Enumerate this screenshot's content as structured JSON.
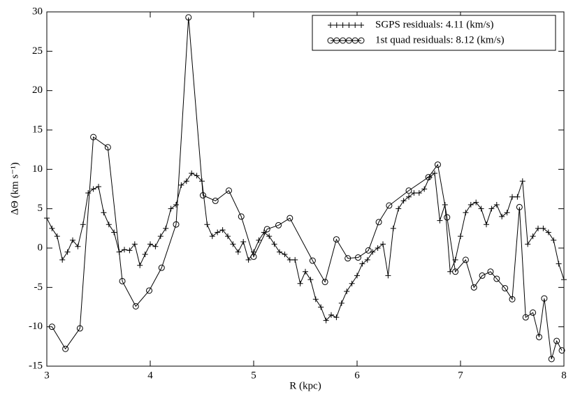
{
  "chart_data": {
    "type": "line",
    "xlabel": "R (kpc)",
    "ylabel": "ΔΘ (km s⁻¹)",
    "xlim": [
      3,
      8
    ],
    "xticks": [
      3,
      4,
      5,
      6,
      7,
      8
    ],
    "ylim": [
      -15,
      30
    ],
    "yticks": [
      -15,
      -10,
      -5,
      0,
      5,
      10,
      15,
      20,
      25,
      30
    ],
    "legend": "upper right",
    "series": [
      {
        "name": "SGPS residuals: 4.11 (km/s)",
        "color": "#000000",
        "marker": "+",
        "x": [
          3.0,
          3.05,
          3.1,
          3.15,
          3.2,
          3.25,
          3.3,
          3.35,
          3.4,
          3.45,
          3.5,
          3.55,
          3.6,
          3.65,
          3.7,
          3.75,
          3.8,
          3.85,
          3.9,
          3.95,
          4.0,
          4.05,
          4.1,
          4.15,
          4.2,
          4.25,
          4.3,
          4.35,
          4.4,
          4.45,
          4.5,
          4.55,
          4.6,
          4.65,
          4.7,
          4.75,
          4.8,
          4.85,
          4.9,
          4.95,
          5.0,
          5.05,
          5.1,
          5.15,
          5.2,
          5.25,
          5.3,
          5.35,
          5.4,
          5.45,
          5.5,
          5.55,
          5.6,
          5.65,
          5.7,
          5.75,
          5.8,
          5.85,
          5.9,
          5.95,
          6.0,
          6.05,
          6.1,
          6.15,
          6.2,
          6.25,
          6.3,
          6.35,
          6.4,
          6.45,
          6.5,
          6.55,
          6.6,
          6.65,
          6.7,
          6.75,
          6.8,
          6.85,
          6.9,
          6.95,
          7.0,
          7.05,
          7.1,
          7.15,
          7.2,
          7.25,
          7.3,
          7.35,
          7.4,
          7.45,
          7.5,
          7.55,
          7.6,
          7.65,
          7.7,
          7.75,
          7.8,
          7.85,
          7.9,
          7.95,
          8.0
        ],
        "values": [
          3.8,
          2.5,
          1.5,
          -1.5,
          -0.5,
          1.0,
          0.2,
          3.0,
          7.0,
          7.5,
          7.8,
          4.5,
          3.0,
          2.0,
          -0.5,
          -0.2,
          -0.3,
          0.5,
          -2.2,
          -0.8,
          0.5,
          0.2,
          1.5,
          2.5,
          5.0,
          5.5,
          8.0,
          8.5,
          9.5,
          9.2,
          8.5,
          3.0,
          1.5,
          2.0,
          2.3,
          1.5,
          0.5,
          -0.5,
          0.8,
          -1.5,
          -0.5,
          1.0,
          2.0,
          1.5,
          0.5,
          -0.5,
          -0.8,
          -1.5,
          -1.5,
          -4.5,
          -3.0,
          -4.0,
          -6.5,
          -7.5,
          -9.2,
          -8.5,
          -8.8,
          -7.0,
          -5.5,
          -4.5,
          -3.5,
          -2.0,
          -1.5,
          -0.5,
          0.0,
          0.5,
          -3.5,
          2.5,
          5.0,
          6.0,
          6.5,
          7.0,
          7.0,
          7.5,
          9.0,
          9.5,
          3.5,
          5.5,
          -3.0,
          -1.5,
          1.5,
          4.5,
          5.5,
          5.8,
          5.0,
          3.0,
          5.0,
          5.5,
          4.0,
          4.5,
          6.5,
          6.5,
          8.5,
          0.5,
          1.5,
          2.5,
          2.5,
          2.0,
          1.0,
          -2.0,
          -4.0
        ]
      },
      {
        "name": "1st quad residuals: 8.12 (km/s)",
        "color": "#000000",
        "marker": "o",
        "x": [
          3.05,
          3.18,
          3.32,
          3.45,
          3.59,
          3.73,
          3.86,
          3.99,
          4.11,
          4.25,
          4.37,
          4.51,
          4.63,
          4.76,
          4.88,
          5.0,
          5.13,
          5.24,
          5.35,
          5.57,
          5.69,
          5.8,
          5.91,
          6.01,
          6.11,
          6.21,
          6.31,
          6.5,
          6.69,
          6.78,
          6.87,
          6.95,
          7.05,
          7.13,
          7.21,
          7.29,
          7.35,
          7.43,
          7.5,
          7.57,
          7.63,
          7.7,
          7.76,
          7.81,
          7.88,
          7.93,
          7.98
        ],
        "values": [
          -10.0,
          -12.8,
          -10.2,
          14.1,
          12.8,
          -4.2,
          -7.4,
          -5.4,
          -2.5,
          3.0,
          29.3,
          6.7,
          6.0,
          7.3,
          4.0,
          -1.1,
          2.4,
          2.9,
          3.8,
          -1.6,
          -4.3,
          1.1,
          -1.3,
          -1.2,
          -0.3,
          3.3,
          5.4,
          7.3,
          9.0,
          10.6,
          3.9,
          -3.0,
          -1.5,
          -5.0,
          -3.5,
          -3.0,
          -3.9,
          -5.1,
          -6.5,
          5.2,
          -8.8,
          -8.2,
          -11.3,
          -6.4,
          -14.1,
          -11.8,
          -13.0
        ]
      }
    ]
  }
}
